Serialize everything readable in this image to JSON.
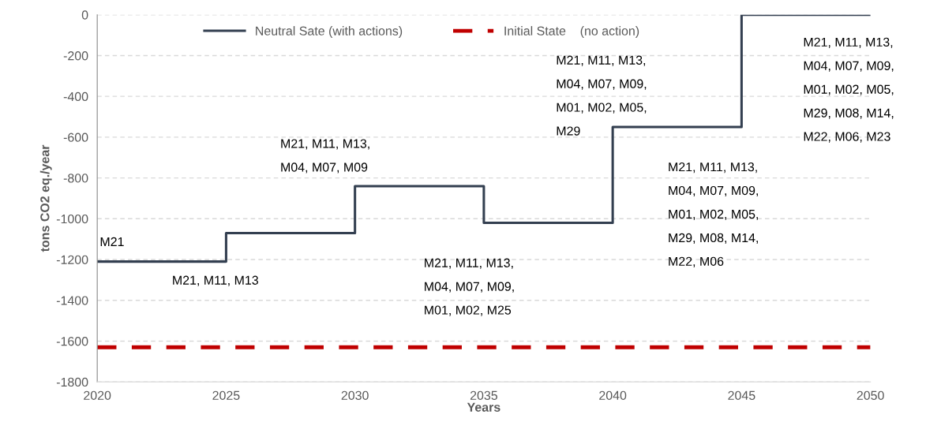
{
  "chart_data": {
    "type": "step",
    "xlabel": "Years",
    "ylabel": "tons CO2 eq./year",
    "x": [
      2020,
      2025,
      2030,
      2035,
      2040,
      2045,
      2050
    ],
    "series": [
      {
        "name": "Neutral Sate (with actions)",
        "color": "#333f50",
        "values": [
          -1210,
          -1070,
          -840,
          -1020,
          -550,
          0,
          0
        ],
        "line_style": "solid"
      },
      {
        "name": "Initial State    (no action)",
        "type": "line",
        "x": [
          2020,
          2050
        ],
        "color": "#c00000",
        "values": [
          -1630,
          -1630
        ],
        "line_style": "dashed"
      }
    ],
    "xlim": [
      2020,
      2050
    ],
    "xticks": [
      2020,
      2025,
      2030,
      2035,
      2040,
      2045,
      2050
    ],
    "ylim": [
      -1800,
      0
    ],
    "yticks": [
      -1800,
      -1600,
      -1400,
      -1200,
      -1000,
      -800,
      -600,
      -400,
      -200,
      0
    ],
    "grid": "y",
    "legend": "top",
    "marker": "none",
    "annotations": [
      "M21",
      "M21, M11, M13",
      "M21, M11, M13,\nM04, M07, M09",
      "M21, M11, M13,\nM04, M07, M09,\nM01, M02, M25",
      "M21, M11, M13,\nM04, M07, M09,\nM01, M02, M05,\nM29",
      "M21, M11, M13,\nM04, M07, M09,\nM01, M02, M05,\nM29, M08, M14,\nM22, M06",
      "M21, M11, M13,\nM04, M07, M09,\nM01, M02, M05,\nM29, M08, M14,\nM22, M06, M23"
    ]
  }
}
